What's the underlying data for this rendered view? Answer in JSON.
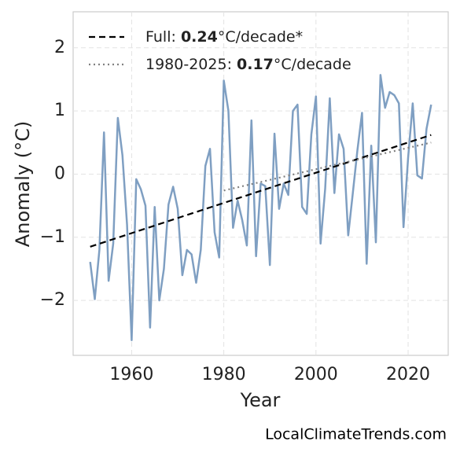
{
  "chart_data": {
    "type": "line",
    "xlabel": "Year",
    "ylabel": "Anomaly (°C)",
    "footer": "LocalClimateTrends.com",
    "xlim": [
      1947.3,
      2028.7
    ],
    "ylim": [
      -2.87,
      2.57
    ],
    "xticks": [
      1960,
      1980,
      2000,
      2020
    ],
    "yticks": [
      {
        "value": -2,
        "label": "−2"
      },
      {
        "value": -1,
        "label": "−1"
      },
      0,
      1,
      2
    ],
    "grid": true,
    "legend_position": "upper left",
    "series": [
      {
        "color": "#7f9fc2",
        "x": [
          1951,
          1952,
          1953,
          1954,
          1955,
          1956,
          1957,
          1958,
          1959,
          1960,
          1961,
          1962,
          1963,
          1964,
          1965,
          1966,
          1967,
          1968,
          1969,
          1970,
          1971,
          1972,
          1973,
          1974,
          1975,
          1976,
          1977,
          1978,
          1979,
          1980,
          1981,
          1982,
          1983,
          1984,
          1985,
          1986,
          1987,
          1988,
          1989,
          1990,
          1991,
          1992,
          1993,
          1994,
          1995,
          1996,
          1997,
          1998,
          1999,
          2000,
          2001,
          2002,
          2003,
          2004,
          2005,
          2006,
          2007,
          2008,
          2009,
          2010,
          2011,
          2012,
          2013,
          2014,
          2015,
          2016,
          2017,
          2018,
          2019,
          2020,
          2021,
          2022,
          2023,
          2024,
          2025
        ],
        "values": [
          -1.39,
          -1.98,
          -1.2,
          0.66,
          -1.69,
          -1.1,
          0.89,
          0.3,
          -0.8,
          -2.63,
          -0.08,
          -0.24,
          -0.5,
          -2.43,
          -0.52,
          -2.0,
          -1.5,
          -0.48,
          -0.2,
          -0.55,
          -1.6,
          -1.2,
          -1.27,
          -1.72,
          -1.2,
          0.13,
          0.4,
          -0.92,
          -1.32,
          1.48,
          1.0,
          -0.85,
          -0.42,
          -0.73,
          -1.13,
          0.85,
          -1.3,
          -0.15,
          -0.19,
          -1.44,
          0.64,
          -0.55,
          -0.15,
          -0.33,
          1.0,
          1.1,
          -0.52,
          -0.63,
          0.63,
          1.23,
          -1.1,
          -0.23,
          1.2,
          -0.3,
          0.63,
          0.4,
          -0.97,
          -0.3,
          0.38,
          0.97,
          -1.42,
          0.45,
          -1.08,
          1.57,
          1.05,
          1.3,
          1.25,
          1.12,
          -0.84,
          0.26,
          1.12,
          -0.02,
          -0.07,
          0.72,
          1.1
        ]
      },
      {
        "color": "#000000",
        "dash": "8,5",
        "x": [
          1951,
          2025
        ],
        "values": [
          -1.15,
          0.62
        ],
        "legend": {
          "prefix": "Full: ",
          "rate": "0.24",
          "suffix": "°C/decade*"
        }
      },
      {
        "color": "#808080",
        "dash": "2,4",
        "x": [
          1980,
          2025
        ],
        "values": [
          -0.26,
          0.5
        ],
        "legend": {
          "prefix": "1980-2025: ",
          "rate": "0.17",
          "suffix": "°C/decade"
        }
      }
    ]
  }
}
